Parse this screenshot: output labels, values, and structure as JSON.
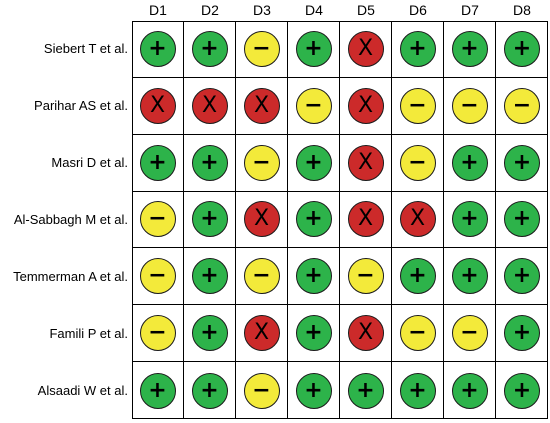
{
  "columns": [
    "D1",
    "D2",
    "D3",
    "D4",
    "D5",
    "D6",
    "D7",
    "D8"
  ],
  "rows": [
    {
      "study": "Siebert T et al.",
      "judgements": [
        "low",
        "low",
        "some",
        "low",
        "high",
        "low",
        "low",
        "low"
      ]
    },
    {
      "study": "Parihar AS et al.",
      "judgements": [
        "high",
        "high",
        "high",
        "some",
        "high",
        "some",
        "some",
        "some"
      ]
    },
    {
      "study": "Masri D et al.",
      "judgements": [
        "low",
        "low",
        "some",
        "low",
        "high",
        "some",
        "low",
        "low"
      ]
    },
    {
      "study": "Al-Sabbagh M et al.",
      "judgements": [
        "some",
        "low",
        "high",
        "low",
        "high",
        "high",
        "low",
        "low"
      ]
    },
    {
      "study": "Temmerman A et al.",
      "judgements": [
        "some",
        "low",
        "some",
        "low",
        "some",
        "low",
        "low",
        "low"
      ]
    },
    {
      "study": "Famili P et al.",
      "judgements": [
        "some",
        "low",
        "high",
        "low",
        "high",
        "some",
        "some",
        "low"
      ]
    },
    {
      "study": "Alsaadi W et al.",
      "judgements": [
        "low",
        "low",
        "some",
        "low",
        "low",
        "low",
        "low",
        "low"
      ]
    }
  ],
  "symbols": {
    "low": "+",
    "some": "−",
    "high": "X"
  },
  "colors": {
    "low": "#2db34a",
    "some": "#f3ea3a",
    "high": "#cc2a2a"
  }
}
